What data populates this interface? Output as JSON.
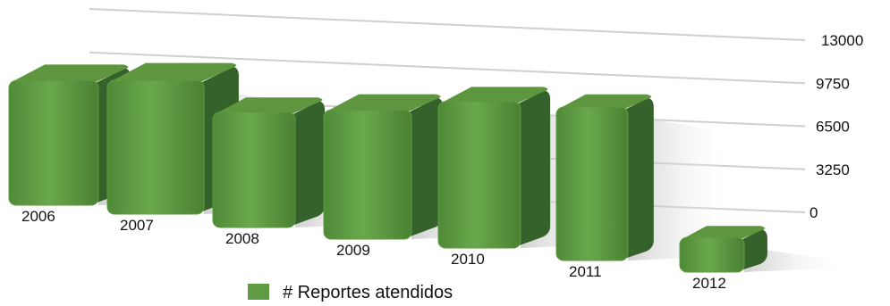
{
  "chart_data": {
    "type": "bar",
    "categories": [
      "2006",
      "2007",
      "2008",
      "2009",
      "2010",
      "2011",
      "2012"
    ],
    "series": [
      {
        "name": "# Reportes atendidos",
        "values": [
          10800,
          11600,
          10000,
          11200,
          12700,
          13300,
          3000
        ]
      }
    ],
    "y_ticks": [
      "13000",
      "9750",
      "6500",
      "3250",
      "0"
    ],
    "ylim": [
      0,
      13000
    ],
    "grid": true,
    "legend_position": "bottom",
    "colors": {
      "bar_front": "#5e9a42",
      "bar_side": "#35612a",
      "bar_top": "#5d963f",
      "legend_swatch": "#5f9b43",
      "grid": "#cfcfcf"
    }
  }
}
